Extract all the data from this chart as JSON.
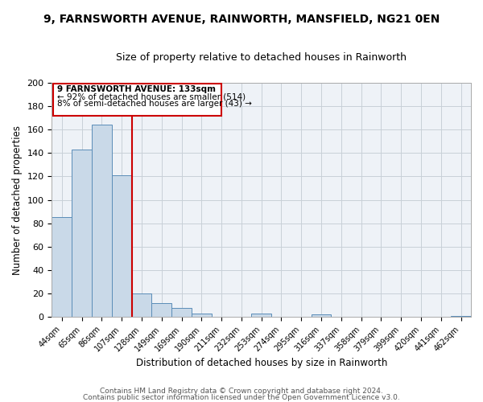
{
  "title_line1": "9, FARNSWORTH AVENUE, RAINWORTH, MANSFIELD, NG21 0EN",
  "title_line2": "Size of property relative to detached houses in Rainworth",
  "xlabel": "Distribution of detached houses by size in Rainworth",
  "ylabel": "Number of detached properties",
  "bar_labels": [
    "44sqm",
    "65sqm",
    "86sqm",
    "107sqm",
    "128sqm",
    "149sqm",
    "169sqm",
    "190sqm",
    "211sqm",
    "232sqm",
    "253sqm",
    "274sqm",
    "295sqm",
    "316sqm",
    "337sqm",
    "358sqm",
    "379sqm",
    "399sqm",
    "420sqm",
    "441sqm",
    "462sqm"
  ],
  "bar_values": [
    85,
    143,
    164,
    121,
    20,
    12,
    8,
    3,
    0,
    0,
    3,
    0,
    0,
    2,
    0,
    0,
    0,
    0,
    0,
    0,
    1
  ],
  "bar_color": "#c9d9e8",
  "bar_edge_color": "#5b8db8",
  "red_line_x": 3.52,
  "annotation_title": "9 FARNSWORTH AVENUE: 133sqm",
  "annotation_line1": "← 92% of detached houses are smaller (514)",
  "annotation_line2": "8% of semi-detached houses are larger (43) →",
  "annotation_box_color": "white",
  "annotation_box_edge": "#cc0000",
  "ylim": [
    0,
    200
  ],
  "yticks": [
    0,
    20,
    40,
    60,
    80,
    100,
    120,
    140,
    160,
    180,
    200
  ],
  "grid_color": "#c8d0d8",
  "bg_color": "#eef2f7",
  "footer_line1": "Contains HM Land Registry data © Crown copyright and database right 2024.",
  "footer_line2": "Contains public sector information licensed under the Open Government Licence v3.0."
}
